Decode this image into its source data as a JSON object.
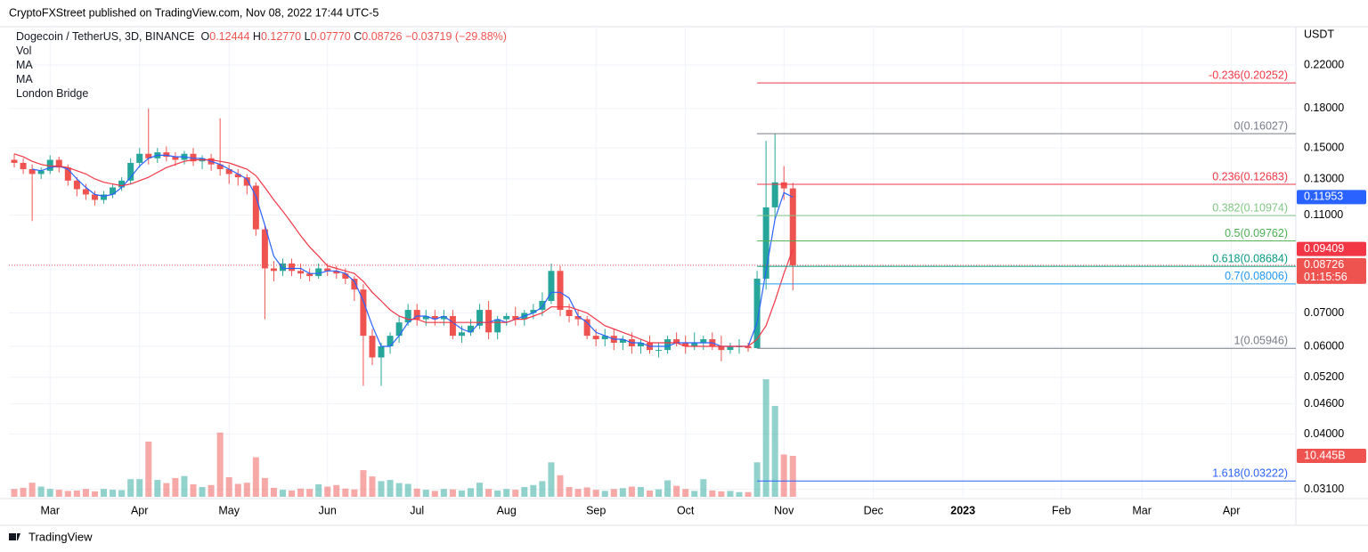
{
  "page": {
    "published": "CryptoFXStreet published on TradingView.com, Nov 08, 2022 17:44 UTC-5",
    "currency": "USDT",
    "countdown": "01:15:56",
    "brand": "TradingView"
  },
  "chart_data": {
    "type": "candlestick",
    "title": "Dogecoin / TetherUS, 3D, BINANCE",
    "ohlc": [
      {
        "key": "O",
        "value": "0.12444"
      },
      {
        "key": "H",
        "value": "0.12770"
      },
      {
        "key": "L",
        "value": "0.07770"
      },
      {
        "key": "C",
        "value": "0.08726"
      }
    ],
    "change": "−0.03719 (−29.88%)",
    "log": true,
    "grid": true,
    "up_color": "#26a69a",
    "down_color": "#ef5350",
    "categories": [
      null,
      null,
      null,
      null,
      null,
      null,
      null,
      null,
      null,
      null,
      null,
      null,
      null,
      null,
      null,
      null,
      null,
      null,
      null,
      null,
      null,
      null,
      null,
      null,
      null,
      null,
      null,
      null,
      null,
      null,
      null,
      null,
      null,
      null,
      null,
      null,
      null,
      null,
      null,
      null,
      null,
      null,
      null,
      null,
      null,
      null,
      null,
      null,
      null,
      null,
      null,
      null,
      null,
      null,
      null,
      null,
      null,
      null,
      null,
      null,
      null,
      null,
      null,
      null,
      null,
      null,
      null,
      null,
      null,
      null,
      null,
      null,
      null,
      null,
      null,
      null,
      null,
      null,
      null,
      null,
      null,
      null,
      null,
      null,
      null,
      null,
      null,
      null
    ],
    "open": [
      0.142,
      0.14,
      0.136,
      0.133,
      0.135,
      0.142,
      0.137,
      0.129,
      0.124,
      0.121,
      0.118,
      0.121,
      0.125,
      0.129,
      0.14,
      0.146,
      0.143,
      0.147,
      0.144,
      0.142,
      0.146,
      0.141,
      0.143,
      0.139,
      0.136,
      0.133,
      0.131,
      0.126,
      0.103,
      0.086,
      0.085,
      0.088,
      0.085,
      0.084,
      0.083,
      0.086,
      0.085,
      0.084,
      0.082,
      0.078,
      0.063,
      0.057,
      0.06,
      0.063,
      0.067,
      0.071,
      0.068,
      0.069,
      0.068,
      0.069,
      0.063,
      0.064,
      0.066,
      0.071,
      0.064,
      0.068,
      0.069,
      0.068,
      0.07,
      0.071,
      0.074,
      0.085,
      0.071,
      0.069,
      0.068,
      0.063,
      0.062,
      0.063,
      0.061,
      0.062,
      0.06,
      0.061,
      0.059,
      0.059,
      0.062,
      0.061,
      0.06,
      0.061,
      0.062,
      0.06,
      0.059,
      0.06,
      0.06,
      0.0595,
      0.082,
      0.114,
      0.128,
      0.12444
    ],
    "high": [
      0.146,
      0.143,
      0.139,
      0.137,
      0.145,
      0.144,
      0.139,
      0.131,
      0.127,
      0.123,
      0.123,
      0.127,
      0.131,
      0.143,
      0.15,
      0.18,
      0.15,
      0.151,
      0.147,
      0.148,
      0.15,
      0.145,
      0.146,
      0.172,
      0.139,
      0.136,
      0.133,
      0.128,
      0.105,
      0.089,
      0.09,
      0.09,
      0.088,
      0.086,
      0.088,
      0.088,
      0.087,
      0.086,
      0.083,
      0.08,
      0.065,
      0.061,
      0.064,
      0.069,
      0.073,
      0.073,
      0.071,
      0.071,
      0.071,
      0.071,
      0.066,
      0.068,
      0.073,
      0.074,
      0.069,
      0.07,
      0.072,
      0.071,
      0.073,
      0.077,
      0.088,
      0.087,
      0.073,
      0.071,
      0.069,
      0.065,
      0.065,
      0.065,
      0.063,
      0.064,
      0.062,
      0.063,
      0.061,
      0.063,
      0.064,
      0.063,
      0.064,
      0.063,
      0.064,
      0.063,
      0.061,
      0.062,
      0.061,
      0.085,
      0.155,
      0.16027,
      0.138,
      0.1277
    ],
    "low": [
      0.137,
      0.133,
      0.107,
      0.13,
      0.133,
      0.134,
      0.126,
      0.12,
      0.118,
      0.115,
      0.116,
      0.119,
      0.123,
      0.127,
      0.137,
      0.139,
      0.14,
      0.141,
      0.138,
      0.139,
      0.138,
      0.136,
      0.135,
      0.132,
      0.127,
      0.126,
      0.121,
      0.1,
      0.068,
      0.081,
      0.083,
      0.083,
      0.082,
      0.081,
      0.082,
      0.083,
      0.082,
      0.08,
      0.074,
      0.05,
      0.055,
      0.05,
      0.058,
      0.061,
      0.066,
      0.066,
      0.066,
      0.066,
      0.066,
      0.062,
      0.061,
      0.063,
      0.065,
      0.062,
      0.062,
      0.066,
      0.066,
      0.066,
      0.068,
      0.069,
      0.073,
      0.069,
      0.067,
      0.066,
      0.062,
      0.06,
      0.06,
      0.059,
      0.059,
      0.058,
      0.058,
      0.058,
      0.057,
      0.058,
      0.06,
      0.058,
      0.059,
      0.059,
      0.059,
      0.056,
      0.058,
      0.058,
      0.0585,
      0.05946,
      0.078,
      0.108,
      0.118,
      0.0777
    ],
    "close": [
      0.14,
      0.136,
      0.133,
      0.135,
      0.142,
      0.137,
      0.129,
      0.124,
      0.121,
      0.118,
      0.121,
      0.125,
      0.129,
      0.14,
      0.146,
      0.143,
      0.147,
      0.144,
      0.142,
      0.146,
      0.141,
      0.143,
      0.139,
      0.136,
      0.133,
      0.131,
      0.126,
      0.103,
      0.086,
      0.085,
      0.088,
      0.085,
      0.084,
      0.083,
      0.086,
      0.085,
      0.084,
      0.082,
      0.078,
      0.063,
      0.057,
      0.06,
      0.063,
      0.067,
      0.071,
      0.068,
      0.069,
      0.068,
      0.069,
      0.063,
      0.064,
      0.066,
      0.071,
      0.064,
      0.068,
      0.069,
      0.068,
      0.07,
      0.071,
      0.074,
      0.085,
      0.071,
      0.069,
      0.068,
      0.063,
      0.062,
      0.063,
      0.061,
      0.062,
      0.06,
      0.061,
      0.059,
      0.059,
      0.062,
      0.061,
      0.06,
      0.061,
      0.062,
      0.06,
      0.059,
      0.06,
      0.06,
      0.0595,
      0.082,
      0.114,
      0.128,
      0.12444,
      0.08726
    ],
    "volume": {
      "name": "Vol",
      "values": [
        2.0,
        2.3,
        3.6,
        2.6,
        2.0,
        1.8,
        1.5,
        1.6,
        2.0,
        1.4,
        2.0,
        1.8,
        1.7,
        4.5,
        4.5,
        14.1,
        4.3,
        3.5,
        4.8,
        5.3,
        3.2,
        2.5,
        3.0,
        16.4,
        5.0,
        3.3,
        3.6,
        10.1,
        4.8,
        2.3,
        1.8,
        1.6,
        2.1,
        2.0,
        3.2,
        2.6,
        3.0,
        2.1,
        1.9,
        6.8,
        5.2,
        4.0,
        4.3,
        3.5,
        3.3,
        2.1,
        1.8,
        1.5,
        2.0,
        1.9,
        1.6,
        2.2,
        3.6,
        2.0,
        1.6,
        2.0,
        1.8,
        2.5,
        3.0,
        4.0,
        8.8,
        5.5,
        2.5,
        2.0,
        2.4,
        1.8,
        1.5,
        2.0,
        2.2,
        2.6,
        2.5,
        1.6,
        1.9,
        4.2,
        2.8,
        2.0,
        1.5,
        4.5,
        1.6,
        1.4,
        1.5,
        1.2,
        1.2,
        8.8,
        30.0,
        23.2,
        10.8,
        10.445
      ],
      "value_labels": [
        null,
        null,
        null,
        null,
        null,
        null,
        null,
        null,
        null,
        null,
        null,
        null,
        null,
        null,
        null,
        null,
        null,
        null,
        null,
        null,
        null,
        null,
        null,
        null,
        null,
        null,
        null,
        null,
        null,
        null,
        null,
        null,
        null,
        null,
        null,
        null,
        null,
        null,
        null,
        null,
        null,
        null,
        null,
        null,
        null,
        null,
        null,
        null,
        null,
        null,
        null,
        null,
        null,
        null,
        null,
        null,
        null,
        null,
        null,
        null,
        null,
        null,
        null,
        null,
        null,
        null,
        null,
        null,
        null,
        null,
        null,
        null,
        null,
        null,
        null,
        null,
        null,
        null,
        null,
        null,
        null,
        null,
        null,
        null,
        null,
        null,
        null,
        "10.445B"
      ]
    },
    "ma": [
      {
        "name": "MA",
        "color": "#2962ff",
        "values": [
          null,
          null,
          0.136,
          0.135,
          0.137,
          0.138,
          0.136,
          0.13,
          0.125,
          0.121,
          0.12,
          0.121,
          0.125,
          0.131,
          0.138,
          0.143,
          0.145,
          0.145,
          0.144,
          0.144,
          0.143,
          0.143,
          0.141,
          0.139,
          0.136,
          0.133,
          0.13,
          0.12,
          0.105,
          0.091,
          0.086,
          0.086,
          0.086,
          0.084,
          0.084,
          0.085,
          0.085,
          0.084,
          0.081,
          0.074,
          0.066,
          0.06,
          0.06,
          0.063,
          0.067,
          0.069,
          0.069,
          0.068,
          0.069,
          0.067,
          0.065,
          0.064,
          0.067,
          0.067,
          0.068,
          0.067,
          0.068,
          0.069,
          0.07,
          0.072,
          0.077,
          0.077,
          0.075,
          0.069,
          0.067,
          0.064,
          0.063,
          0.062,
          0.062,
          0.061,
          0.061,
          0.06,
          0.06,
          0.06,
          0.061,
          0.061,
          0.061,
          0.061,
          0.061,
          0.06,
          0.06,
          0.06,
          0.06,
          0.067,
          0.085,
          0.108,
          0.122,
          0.11953
        ]
      },
      {
        "name": "MA",
        "color": "#f23645",
        "values": [
          0.146,
          0.144,
          0.141,
          0.139,
          0.138,
          0.138,
          0.137,
          0.135,
          0.133,
          0.13,
          0.128,
          0.127,
          0.126,
          0.127,
          0.129,
          0.131,
          0.134,
          0.137,
          0.139,
          0.141,
          0.142,
          0.142,
          0.142,
          0.141,
          0.14,
          0.138,
          0.136,
          0.132,
          0.125,
          0.118,
          0.112,
          0.106,
          0.1,
          0.095,
          0.091,
          0.087,
          0.086,
          0.085,
          0.084,
          0.081,
          0.077,
          0.074,
          0.071,
          0.069,
          0.068,
          0.068,
          0.067,
          0.067,
          0.067,
          0.067,
          0.067,
          0.067,
          0.067,
          0.067,
          0.067,
          0.067,
          0.068,
          0.068,
          0.069,
          0.07,
          0.072,
          0.072,
          0.072,
          0.071,
          0.07,
          0.068,
          0.066,
          0.065,
          0.064,
          0.063,
          0.062,
          0.061,
          0.061,
          0.061,
          0.061,
          0.06,
          0.06,
          0.06,
          0.06,
          0.06,
          0.06,
          0.06,
          0.06,
          0.062,
          0.066,
          0.074,
          0.084,
          0.09409
        ]
      }
    ],
    "fib": {
      "name": "London Bridge",
      "levels": [
        {
          "text": "-0.236(0.20252)",
          "value": 0.20252,
          "color": "#f23645"
        },
        {
          "text": "0(0.16027)",
          "value": 0.16027,
          "color": "#787b86"
        },
        {
          "text": "0.236(0.12683)",
          "value": 0.12683,
          "color": "#f23645"
        },
        {
          "text": "0.382(0.10974)",
          "value": 0.10974,
          "color": "#81c784"
        },
        {
          "text": "0.5(0.09762)",
          "value": 0.09762,
          "color": "#4caf50"
        },
        {
          "text": "0.618(0.08684)",
          "value": 0.08684,
          "color": "#089981"
        },
        {
          "text": "0.7(0.08006)",
          "value": 0.08006,
          "color": "#2196f3"
        },
        {
          "text": "1(0.05946)",
          "value": 0.05946,
          "color": "#787b86"
        },
        {
          "text": "1.618(0.03222)",
          "value": 0.03222,
          "color": "#2962ff"
        }
      ]
    },
    "ylim": [
      0.0297,
      0.2626
    ],
    "yticks": [
      {
        "value": 0.22,
        "label": "0.22000"
      },
      {
        "value": 0.18,
        "label": "0.18000"
      },
      {
        "value": 0.15,
        "label": "0.15000"
      },
      {
        "value": 0.13,
        "label": "0.13000"
      },
      {
        "value": 0.11,
        "label": "0.11000"
      },
      {
        "value": 0.07,
        "label": "0.07000"
      },
      {
        "value": 0.06,
        "label": "0.06000"
      },
      {
        "value": 0.052,
        "label": "0.05200"
      },
      {
        "value": 0.046,
        "label": "0.04600"
      },
      {
        "value": 0.04,
        "label": "0.04000"
      },
      {
        "value": 0.031,
        "label": "0.03100"
      }
    ],
    "xlim": [
      -0.6,
      143.2
    ],
    "xticks": [
      {
        "value": 4,
        "label": "Mar"
      },
      {
        "value": 14,
        "label": "Apr"
      },
      {
        "value": 24,
        "label": "May"
      },
      {
        "value": 35,
        "label": "Jun"
      },
      {
        "value": 45,
        "label": "Jul"
      },
      {
        "value": 55,
        "label": "Aug"
      },
      {
        "value": 65,
        "label": "Sep"
      },
      {
        "value": 75,
        "label": "Oct"
      },
      {
        "value": 86,
        "label": "Nov"
      },
      {
        "value": 96,
        "label": "Dec"
      },
      {
        "value": 106,
        "label": "2023"
      },
      {
        "value": 117,
        "label": "Feb"
      },
      {
        "value": 126,
        "label": "Mar"
      },
      {
        "value": 136,
        "label": "Apr"
      }
    ]
  }
}
